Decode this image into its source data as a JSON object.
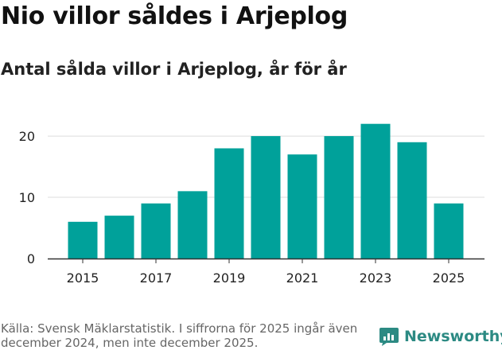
{
  "header": {
    "title": "Nio villor såldes i Arjeplog",
    "subtitle": "Antal sålda villor i Arjeplog, år för år"
  },
  "footer": {
    "source": "Källa: Svensk Mäklarstatistik. I siffrorna för 2025 ingår även december 2024, men inte december 2025.",
    "brand": "Newsworthy"
  },
  "colors": {
    "bar": "#00a19a",
    "brand": "#2c8a83",
    "grid": "#dddddd",
    "axis": "#333333"
  },
  "chart_data": {
    "type": "bar",
    "categories": [
      "2015",
      "2016",
      "2017",
      "2018",
      "2019",
      "2020",
      "2021",
      "2022",
      "2023",
      "2024",
      "2025"
    ],
    "values": [
      6,
      7,
      9,
      11,
      18,
      20,
      17,
      20,
      22,
      19,
      9
    ],
    "x_tick_labels": [
      "2015",
      "2017",
      "2019",
      "2021",
      "2023",
      "2025"
    ],
    "y_ticks": [
      0,
      10,
      20
    ],
    "ylim": [
      0,
      23
    ],
    "grid": true,
    "legend": "none"
  }
}
